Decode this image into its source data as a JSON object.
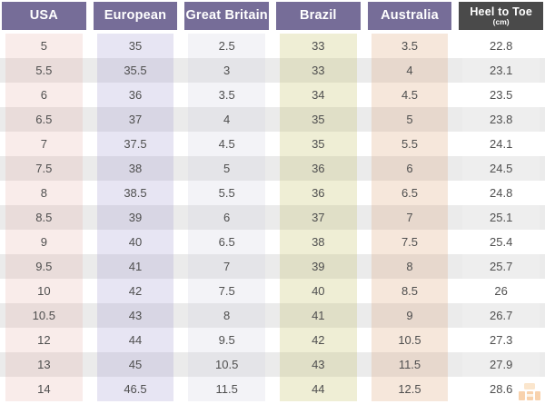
{
  "chart_data": {
    "type": "table",
    "stripe_color": "#ebebeb",
    "row_count": 15,
    "columns": [
      {
        "label": "USA",
        "sublabel": "",
        "header_bg": "#766d98",
        "row_odd_bg": "#f9ecea",
        "row_even_bg": "#e9dcda",
        "values": [
          "5",
          "5.5",
          "6",
          "6.5",
          "7",
          "7.5",
          "8",
          "8.5",
          "9",
          "9.5",
          "10",
          "10.5",
          "12",
          "13",
          "14"
        ]
      },
      {
        "label": "European",
        "sublabel": "",
        "header_bg": "#766d98",
        "row_odd_bg": "#e7e5f3",
        "row_even_bg": "#d8d6e4",
        "values": [
          "35",
          "35.5",
          "36",
          "37",
          "37.5",
          "38",
          "38.5",
          "39",
          "40",
          "41",
          "42",
          "43",
          "44",
          "45",
          "46.5"
        ]
      },
      {
        "label": "Great Britain",
        "sublabel": "",
        "header_bg": "#766d98",
        "row_odd_bg": "#f3f3f7",
        "row_even_bg": "#e4e4e8",
        "values": [
          "2.5",
          "3",
          "3.5",
          "4",
          "4.5",
          "5",
          "5.5",
          "6",
          "6.5",
          "7",
          "7.5",
          "8",
          "9.5",
          "10.5",
          "11.5"
        ]
      },
      {
        "label": "Brazil",
        "sublabel": "",
        "header_bg": "#766d98",
        "row_odd_bg": "#efeed5",
        "row_even_bg": "#e0dfc7",
        "values": [
          "33",
          "33",
          "34",
          "35",
          "35",
          "36",
          "36",
          "37",
          "38",
          "39",
          "40",
          "41",
          "42",
          "43",
          "44"
        ]
      },
      {
        "label": "Australia",
        "sublabel": "",
        "header_bg": "#766d98",
        "row_odd_bg": "#f6e7db",
        "row_even_bg": "#e7d8cd",
        "values": [
          "3.5",
          "4",
          "4.5",
          "5",
          "5.5",
          "6",
          "6.5",
          "7",
          "7.5",
          "8",
          "8.5",
          "9",
          "10.5",
          "11.5",
          "12.5"
        ]
      },
      {
        "label": "Heel to Toe",
        "sublabel": "(cm)",
        "header_bg": "#4a4a4a",
        "row_odd_bg": "#ffffff",
        "row_even_bg": "#eeeeee",
        "values": [
          "22.8",
          "23.1",
          "23.5",
          "23.8",
          "24.1",
          "24.5",
          "24.8",
          "25.1",
          "25.4",
          "25.7",
          "26",
          "26.7",
          "27.3",
          "27.9",
          "28.6"
        ]
      }
    ]
  },
  "watermark": {
    "icon": "grid-logo-icon",
    "color_light": "#f8cf9d",
    "color_main": "#f2a65e"
  }
}
